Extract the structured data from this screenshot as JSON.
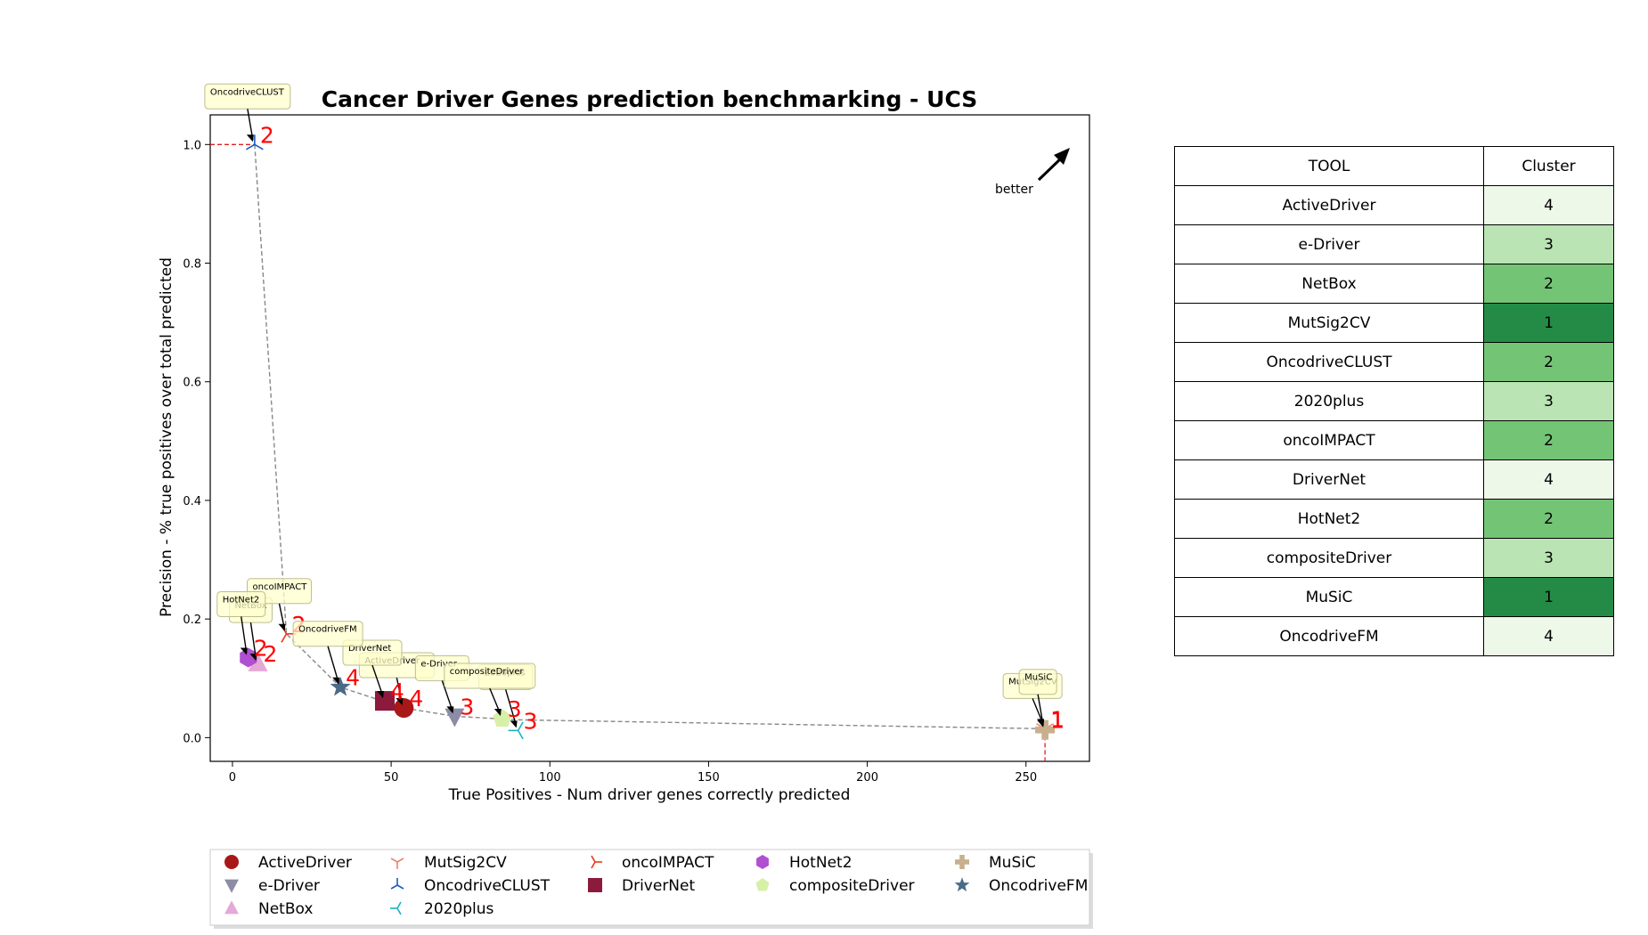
{
  "chart_data": {
    "type": "scatter",
    "title": "Cancer Driver Genes prediction benchmarking - UCS",
    "xlabel": "True Positives - Num driver genes correctly predicted",
    "ylabel": "Precision - % true positives over total predicted",
    "xlim": [
      -7,
      270
    ],
    "ylim": [
      -0.04,
      1.05
    ],
    "xticks": [
      0,
      50,
      100,
      150,
      200,
      250
    ],
    "yticks": [
      0.0,
      0.2,
      0.4,
      0.6,
      0.8,
      1.0
    ],
    "better_label": "better",
    "legend_position": "bottom",
    "series": [
      {
        "name": "ActiveDriver",
        "x": 54,
        "y": 0.05,
        "cluster": "4",
        "marker": "circle",
        "color": "#a81818"
      },
      {
        "name": "e-Driver",
        "x": 70,
        "y": 0.036,
        "cluster": "3",
        "marker": "triangle-down",
        "color": "#8c8ca6"
      },
      {
        "name": "NetBox",
        "x": 8,
        "y": 0.125,
        "cluster": "2",
        "marker": "triangle-up",
        "color": "#e6a8d7"
      },
      {
        "name": "MutSig2CV",
        "x": 256,
        "y": 0.015,
        "cluster": "1",
        "marker": "tri-down",
        "color": "#f08070"
      },
      {
        "name": "OncodriveCLUST",
        "x": 7,
        "y": 1.0,
        "cluster": "2",
        "marker": "tri-up",
        "color": "#1a5bc4"
      },
      {
        "name": "2020plus",
        "x": 90,
        "y": 0.012,
        "cluster": "3",
        "marker": "tri-left",
        "color": "#1ab3c4"
      },
      {
        "name": "oncoIMPACT",
        "x": 17,
        "y": 0.175,
        "cluster": "2",
        "marker": "tri-right",
        "color": "#e83a1a"
      },
      {
        "name": "DriverNet",
        "x": 48,
        "y": 0.062,
        "cluster": "4",
        "marker": "square",
        "color": "#8b1a3c"
      },
      {
        "name": "HotNet2",
        "x": 5,
        "y": 0.135,
        "cluster": "2",
        "marker": "hexagon",
        "color": "#b04fd0"
      },
      {
        "name": "compositeDriver",
        "x": 85,
        "y": 0.032,
        "cluster": "3",
        "marker": "pentagon",
        "color": "#d6f0a8"
      },
      {
        "name": "MuSiC",
        "x": 256,
        "y": 0.013,
        "cluster": "1",
        "marker": "plus",
        "color": "#c8b08c"
      },
      {
        "name": "OncodriveFM",
        "x": 34,
        "y": 0.085,
        "cluster": "4",
        "marker": "star",
        "color": "#4a6a88"
      }
    ],
    "pareto_front": [
      [
        7,
        1.0
      ],
      [
        17,
        0.175
      ],
      [
        34,
        0.085
      ],
      [
        54,
        0.05
      ],
      [
        70,
        0.036
      ],
      [
        90,
        0.03
      ],
      [
        256,
        0.015
      ]
    ],
    "legend_order": [
      "ActiveDriver",
      "e-Driver",
      "NetBox",
      "MutSig2CV",
      "OncodriveCLUST",
      "2020plus",
      "oncoIMPACT",
      "DriverNet",
      "HotNet2",
      "compositeDriver",
      "MuSiC",
      "OncodriveFM"
    ]
  },
  "table": {
    "headers": [
      "TOOL",
      "Cluster"
    ],
    "rows": [
      {
        "tool": "ActiveDriver",
        "cluster": "4",
        "color": "#edf8e9"
      },
      {
        "tool": "e-Driver",
        "cluster": "3",
        "color": "#bae4b3"
      },
      {
        "tool": "NetBox",
        "cluster": "2",
        "color": "#74c476"
      },
      {
        "tool": "MutSig2CV",
        "cluster": "1",
        "color": "#238b45"
      },
      {
        "tool": "OncodriveCLUST",
        "cluster": "2",
        "color": "#74c476"
      },
      {
        "tool": "2020plus",
        "cluster": "3",
        "color": "#bae4b3"
      },
      {
        "tool": "oncoIMPACT",
        "cluster": "2",
        "color": "#74c476"
      },
      {
        "tool": "DriverNet",
        "cluster": "4",
        "color": "#edf8e9"
      },
      {
        "tool": "HotNet2",
        "cluster": "2",
        "color": "#74c476"
      },
      {
        "tool": "compositeDriver",
        "cluster": "3",
        "color": "#bae4b3"
      },
      {
        "tool": "MuSiC",
        "cluster": "1",
        "color": "#238b45"
      },
      {
        "tool": "OncodriveFM",
        "cluster": "4",
        "color": "#edf8e9"
      }
    ]
  }
}
